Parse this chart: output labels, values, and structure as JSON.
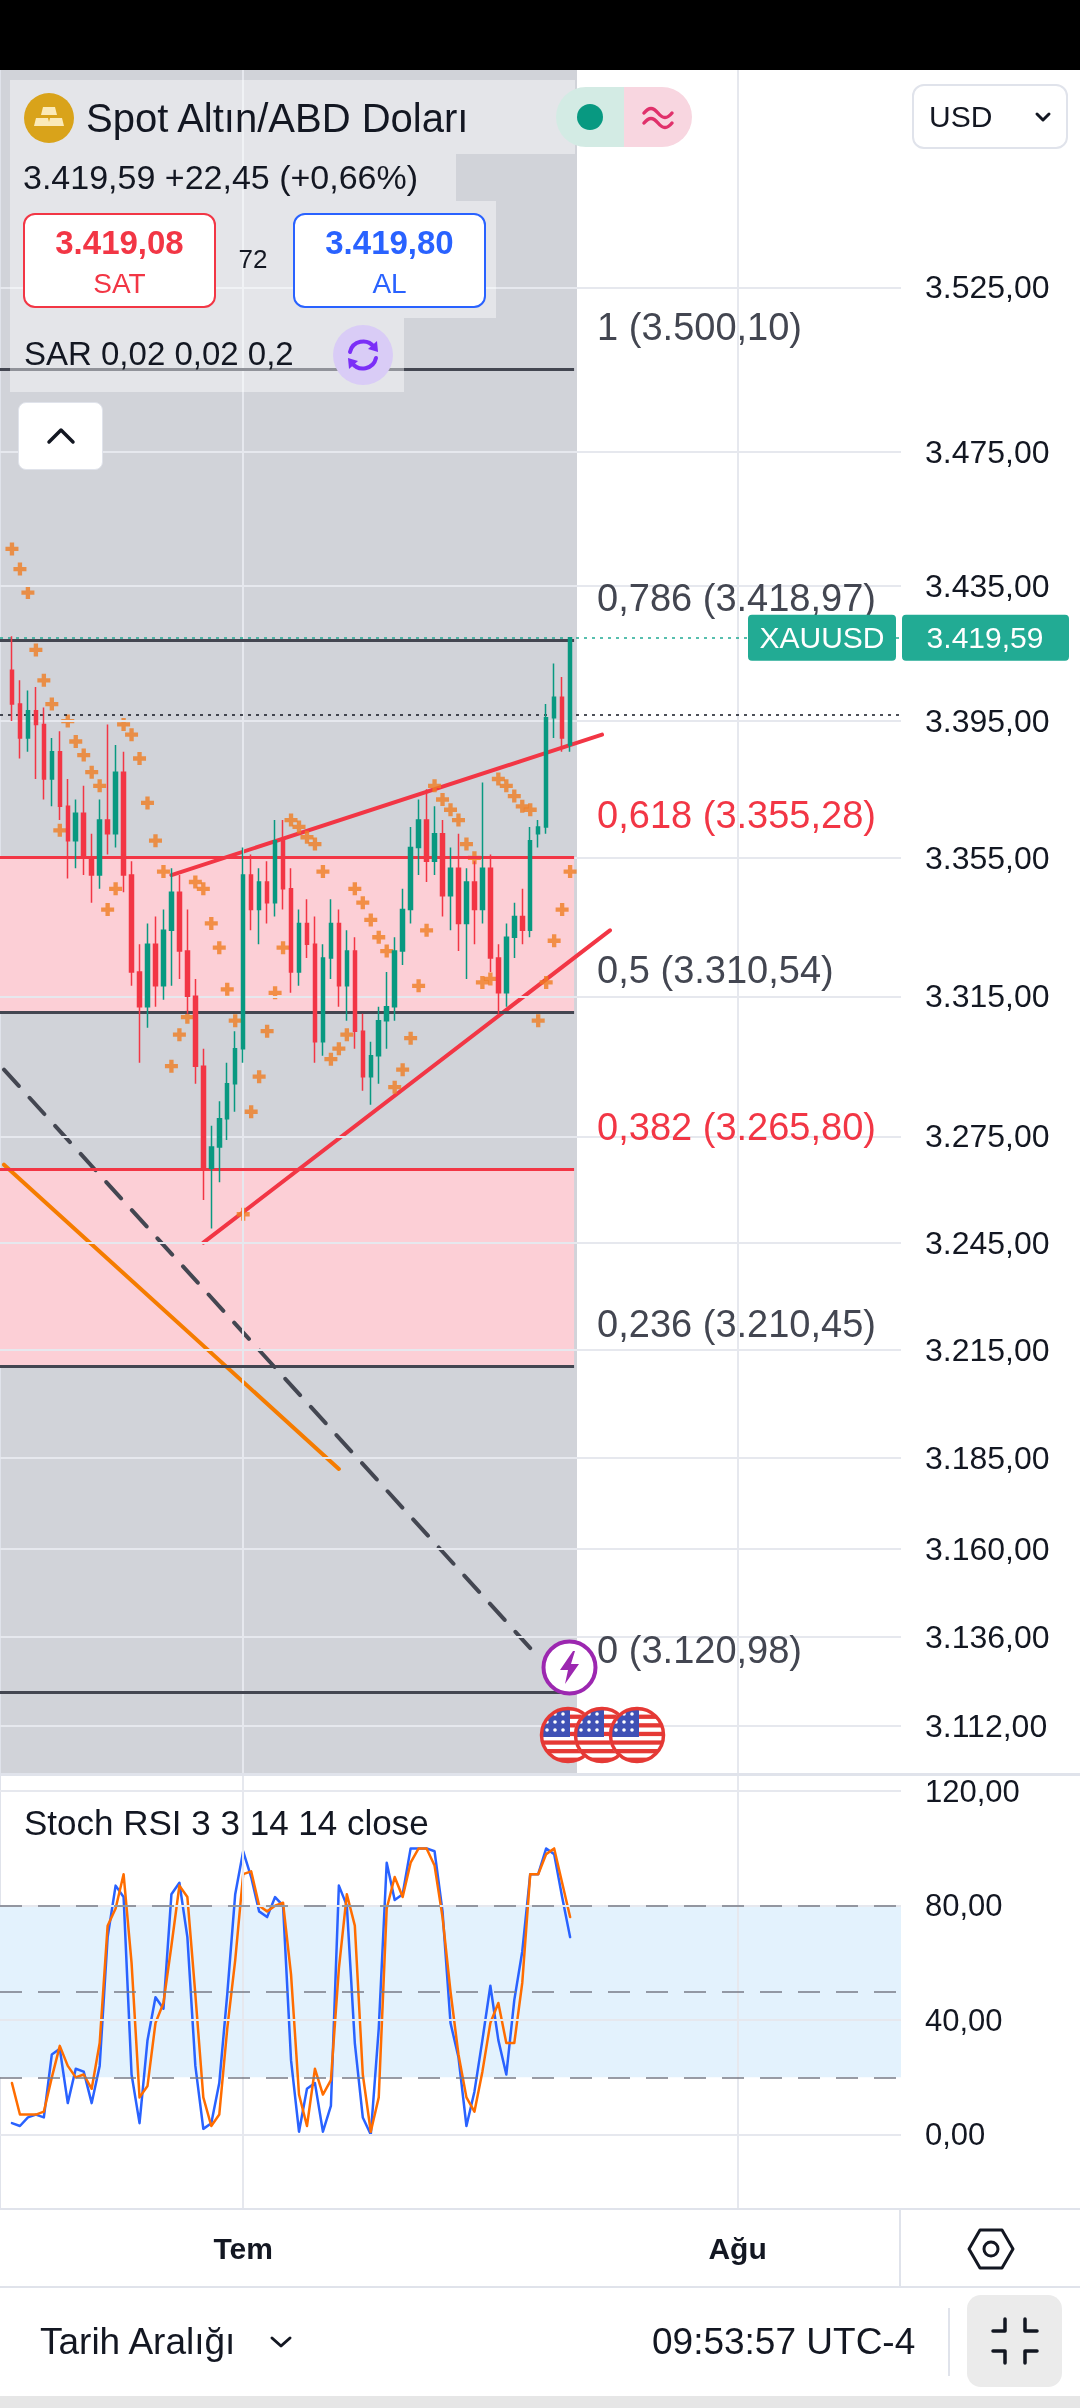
{
  "chart_data": [
    {
      "type": "candlestick",
      "title": "Spot Altın/ABD Doları",
      "subtitle": "3.419,59 +22,45 (+0,66%)",
      "annotations": [
        "3.419,08",
        "SAT",
        "72",
        "3.419,80",
        "AL",
        "SAR 0,02 0,02 0,2",
        "USD",
        "3.419,59"
      ],
      "categories": [
        null,
        null,
        null,
        null,
        null,
        null,
        null,
        null,
        null,
        null,
        null,
        null,
        null,
        null,
        null,
        null,
        null,
        null,
        null,
        null,
        null,
        null,
        null,
        null,
        null,
        null,
        null,
        null,
        null,
        null,
        null,
        null,
        null,
        null,
        null,
        null,
        null,
        null,
        null,
        null,
        null,
        null,
        null,
        null,
        null,
        null,
        null,
        null,
        null,
        null,
        null,
        null,
        null,
        null,
        null,
        null,
        null,
        null,
        null,
        null,
        null,
        null,
        null,
        null,
        null,
        null,
        null,
        null,
        null,
        null,
        null,
        null,
        null,
        null,
        null,
        null,
        null,
        null,
        null,
        null,
        null,
        null,
        null,
        null,
        null,
        null,
        null,
        null,
        null,
        null,
        null,
        null,
        null,
        null,
        null,
        null,
        null,
        null,
        null,
        null,
        null,
        null,
        null,
        null,
        null,
        null,
        null,
        null,
        null,
        null,
        null,
        null,
        null
      ],
      "ohlc": [
        null,
        [
          3410,
          3420,
          3395,
          3400
        ],
        [
          3400,
          3407,
          3384,
          3390
        ],
        [
          3390,
          3404,
          3386,
          3398
        ],
        [
          3398,
          3405,
          3378,
          3394
        ],
        [
          3394,
          3399,
          3372,
          3378
        ],
        [
          3378,
          3390,
          3370,
          3386
        ],
        [
          3386,
          3392,
          3366,
          3370
        ],
        [
          3370,
          3378,
          3349,
          3360
        ],
        [
          3360,
          3372,
          3352,
          3368
        ],
        [
          3368,
          3376,
          3350,
          3355
        ],
        [
          3355,
          3362,
          3342,
          3350
        ],
        [
          3350,
          3372,
          3346,
          3366
        ],
        [
          3366,
          3394,
          3356,
          3362
        ],
        [
          3362,
          3388,
          3358,
          3380
        ],
        [
          3380,
          3386,
          3345,
          3350
        ],
        [
          3350,
          3354,
          3318,
          3322
        ],
        [
          3322,
          3330,
          3296,
          3312
        ],
        [
          3312,
          3336,
          3306,
          3330
        ],
        [
          3330,
          3338,
          3312,
          3318
        ],
        [
          3318,
          3340,
          3314,
          3334
        ],
        [
          3334,
          3352,
          3318,
          3345
        ],
        [
          3345,
          3350,
          3320,
          3328
        ],
        [
          3328,
          3340,
          3310,
          3315
        ],
        [
          3315,
          3320,
          3290,
          3295
        ],
        [
          3295,
          3300,
          3257,
          3266
        ],
        [
          3266,
          3278,
          3249,
          3272
        ],
        [
          3272,
          3285,
          3262,
          3280
        ],
        [
          3280,
          3296,
          3274,
          3290
        ],
        [
          3290,
          3305,
          3282,
          3300
        ],
        [
          3300,
          3358,
          3296,
          3350
        ],
        [
          3350,
          3356,
          3334,
          3340
        ],
        [
          3340,
          3352,
          3330,
          3348
        ],
        [
          3348,
          3354,
          3336,
          3342
        ],
        [
          3342,
          3366,
          3338,
          3360
        ],
        [
          3360,
          3366,
          3340,
          3346
        ],
        [
          3346,
          3352,
          3316,
          3322
        ],
        [
          3322,
          3340,
          3318,
          3336
        ],
        [
          3336,
          3343,
          3326,
          3330
        ],
        [
          3330,
          3338,
          3296,
          3302
        ],
        [
          3302,
          3330,
          3298,
          3326
        ],
        [
          3326,
          3343,
          3320,
          3336
        ],
        [
          3336,
          3340,
          3312,
          3318
        ],
        [
          3318,
          3334,
          3308,
          3328
        ],
        [
          3328,
          3332,
          3300,
          3305
        ],
        [
          3305,
          3310,
          3288,
          3292
        ],
        [
          3292,
          3302,
          3284,
          3298
        ],
        [
          3298,
          3312,
          3290,
          3308
        ],
        [
          3308,
          3322,
          3300,
          3312
        ],
        [
          3312,
          3332,
          3308,
          3328
        ],
        [
          3328,
          3346,
          3324,
          3340
        ],
        [
          3340,
          3364,
          3336,
          3358
        ],
        [
          3358,
          3372,
          3350,
          3366
        ],
        [
          3366,
          3375,
          3348,
          3354
        ],
        [
          3354,
          3370,
          3350,
          3362
        ],
        [
          3362,
          3366,
          3338,
          3344
        ],
        [
          3344,
          3358,
          3334,
          3352
        ],
        [
          3352,
          3362,
          3328,
          3336
        ],
        [
          3336,
          3352,
          3320,
          3348
        ],
        [
          3348,
          3354,
          3330,
          3340
        ],
        [
          3340,
          3377,
          3336,
          3352
        ],
        [
          3352,
          3356,
          3322,
          3326
        ],
        [
          3326,
          3330,
          3310,
          3316
        ],
        [
          3316,
          3336,
          3312,
          3332
        ],
        [
          3332,
          3342,
          3326,
          3338
        ],
        [
          3338,
          3346,
          3330,
          3334
        ],
        [
          3334,
          3364,
          3332,
          3360
        ],
        [
          3362,
          3366,
          3358,
          3364
        ],
        [
          3364,
          3400,
          3362,
          3396
        ],
        [
          3396,
          3412,
          3390,
          3402
        ],
        [
          3402,
          3408,
          3386,
          3390
        ],
        [
          3388,
          3419.59,
          3386,
          3419.59
        ],
        null,
        null,
        null,
        null,
        null,
        null,
        null,
        null,
        null,
        null,
        null,
        null,
        null,
        null,
        null,
        null,
        null,
        null,
        null,
        null,
        null,
        null,
        null,
        null,
        null,
        null,
        null,
        null,
        null,
        null,
        null,
        null,
        null,
        null,
        null,
        null,
        null,
        null,
        null,
        null,
        null
      ],
      "colors": [
        null,
        "#f23645",
        "#f23645",
        "#089981",
        "#f23645",
        "#f23645",
        "#089981",
        "#f23645",
        "#f23645",
        "#089981",
        "#f23645",
        "#f23645",
        "#089981",
        "#f23645",
        "#089981",
        "#f23645",
        "#f23645",
        "#f23645",
        "#089981",
        "#f23645",
        "#089981",
        "#089981",
        "#f23645",
        "#f23645",
        "#f23645",
        "#f23645",
        "#089981",
        "#089981",
        "#089981",
        "#089981",
        "#089981",
        "#f23645",
        "#089981",
        "#f23645",
        "#089981",
        "#f23645",
        "#f23645",
        "#089981",
        "#f23645",
        "#f23645",
        "#089981",
        "#089981",
        "#f23645",
        "#089981",
        "#f23645",
        "#f23645",
        "#089981",
        "#089981",
        "#089981",
        "#089981",
        "#089981",
        "#089981",
        "#089981",
        "#f23645",
        "#089981",
        "#f23645",
        "#089981",
        "#f23645",
        "#089981",
        "#f23645",
        "#089981",
        "#f23645",
        "#f23645",
        "#089981",
        "#089981",
        "#f23645",
        "#089981",
        "#089981",
        "#089981",
        "#089981",
        "#f23645",
        "#089981",
        null,
        null,
        null,
        null,
        null,
        null,
        null,
        null,
        null,
        null,
        null,
        null,
        null,
        null,
        null,
        null,
        null,
        null,
        null,
        null,
        null,
        null,
        null,
        null,
        null,
        null,
        null,
        null,
        null,
        null,
        null,
        null,
        null,
        null,
        null,
        null,
        null,
        null,
        null,
        null,
        null
      ],
      "series": [
        {
          "type": "scatter",
          "marker": "cross",
          "color": "#ef7d22",
          "values": [
            null,
            3446,
            3440,
            3433,
            3416,
            3407,
            3400,
            3363,
            3395,
            3389,
            3385,
            3380,
            3376,
            3340,
            3346,
            3394,
            3391,
            3384,
            3371,
            3360,
            3351,
            3295,
            3304,
            3309,
            3348,
            3346,
            3336,
            3329,
            3317,
            3308,
            3253,
            3282,
            3292,
            3305,
            3316,
            3329,
            3366,
            3364,
            3361,
            3359,
            3351,
            3297,
            3300,
            3304,
            3346,
            3342,
            3337,
            3332,
            3328,
            3289,
            3294,
            3303,
            3318,
            3334,
            3376,
            3372,
            3369,
            3366,
            3359,
            3355,
            3319,
            3320,
            3378,
            3376,
            3373,
            3370,
            3369,
            3308,
            3319,
            3331,
            3340,
            3351,
            null,
            null,
            null,
            null,
            null,
            null,
            null,
            null,
            null,
            null,
            null,
            null,
            null,
            null,
            null,
            null,
            null,
            null,
            null,
            null,
            null,
            null,
            null,
            null,
            null,
            null,
            null,
            null,
            null,
            null,
            null,
            null,
            null,
            null,
            null,
            null,
            null,
            null,
            null,
            null,
            null
          ]
        },
        {
          "type": "line",
          "marker": "none",
          "color": "#f23645",
          "values": [
            null,
            null,
            null,
            null,
            null,
            null,
            null,
            null,
            null,
            null,
            null,
            null,
            null,
            null,
            null,
            null,
            null,
            null,
            null,
            null,
            null,
            3350,
            null,
            null,
            null,
            null,
            null,
            null,
            null,
            null,
            null,
            null,
            null,
            null,
            null,
            null,
            null,
            null,
            null,
            null,
            null,
            null,
            null,
            null,
            null,
            null,
            null,
            null,
            null,
            null,
            null,
            null,
            null,
            null,
            null,
            null,
            null,
            null,
            null,
            null,
            null,
            null,
            null,
            null,
            null,
            null,
            null,
            null,
            null,
            null,
            null,
            null,
            null,
            null,
            null,
            3391,
            null,
            null,
            null,
            null,
            null,
            null,
            null,
            null,
            null,
            null,
            null,
            null,
            null,
            null,
            null,
            null,
            null,
            null,
            null,
            null,
            null,
            null,
            null,
            null,
            null,
            null,
            null,
            null,
            null,
            null,
            null,
            null,
            null,
            null,
            null,
            null,
            null
          ]
        },
        {
          "type": "line",
          "marker": "none",
          "color": "#f23645",
          "values": [
            null,
            null,
            null,
            null,
            null,
            null,
            null,
            null,
            null,
            null,
            null,
            null,
            null,
            null,
            null,
            null,
            null,
            null,
            null,
            null,
            null,
            null,
            null,
            null,
            null,
            3245,
            null,
            null,
            null,
            null,
            null,
            null,
            null,
            null,
            null,
            null,
            null,
            null,
            null,
            null,
            null,
            null,
            null,
            null,
            null,
            null,
            null,
            null,
            null,
            null,
            null,
            null,
            null,
            null,
            null,
            null,
            null,
            null,
            null,
            null,
            null,
            null,
            null,
            null,
            null,
            null,
            null,
            null,
            null,
            null,
            null,
            null,
            null,
            null,
            null,
            null,
            3334,
            null,
            null,
            null,
            null,
            null,
            null,
            null,
            null,
            null,
            null,
            null,
            null,
            null,
            null,
            null,
            null,
            null,
            null,
            null,
            null,
            null,
            null,
            null,
            null,
            null,
            null,
            null,
            null,
            null,
            null,
            null,
            null,
            null,
            null,
            null,
            null
          ]
        },
        {
          "type": "line",
          "marker": "none",
          "color": "#f57c00",
          "values": [
            3267,
            null,
            null,
            null,
            null,
            null,
            null,
            null,
            null,
            null,
            null,
            null,
            null,
            null,
            null,
            null,
            null,
            null,
            null,
            null,
            null,
            null,
            null,
            null,
            null,
            null,
            null,
            null,
            null,
            null,
            null,
            null,
            null,
            null,
            null,
            null,
            null,
            null,
            null,
            null,
            null,
            null,
            3182,
            null,
            null,
            null,
            null,
            null,
            null,
            null,
            null,
            null,
            null,
            null,
            null,
            null,
            null,
            null,
            null,
            null,
            null,
            null,
            null,
            null,
            null,
            null,
            null,
            null,
            null,
            null,
            null,
            null,
            null,
            null,
            null,
            null,
            null,
            null,
            null,
            null,
            null,
            null,
            null,
            null,
            null,
            null,
            null,
            null,
            null,
            null,
            null,
            null,
            null,
            null,
            null,
            null,
            null,
            null,
            null,
            null,
            null,
            null,
            null,
            null,
            null,
            null,
            null,
            null,
            null,
            null,
            null,
            null,
            null
          ]
        },
        {
          "type": "line",
          "marker": "none",
          "color": "#434651",
          "line_style": "dashed",
          "values": [
            3294,
            null,
            null,
            null,
            null,
            null,
            null,
            null,
            null,
            null,
            null,
            null,
            null,
            null,
            null,
            null,
            null,
            null,
            null,
            null,
            null,
            null,
            null,
            null,
            null,
            null,
            null,
            null,
            null,
            null,
            null,
            null,
            null,
            null,
            null,
            null,
            null,
            null,
            null,
            null,
            null,
            null,
            null,
            null,
            null,
            null,
            null,
            null,
            null,
            null,
            null,
            null,
            null,
            null,
            null,
            null,
            null,
            null,
            null,
            null,
            null,
            null,
            null,
            null,
            null,
            null,
            3133,
            null,
            null,
            null,
            null,
            null,
            null,
            null,
            null,
            null,
            null,
            null,
            null,
            null,
            null,
            null,
            null,
            null,
            null,
            null,
            null,
            null,
            null,
            null,
            null,
            null,
            null,
            null,
            null,
            null,
            null,
            null,
            null,
            null,
            null,
            null,
            null,
            null,
            null,
            null,
            null,
            null,
            null,
            null,
            null,
            null,
            null
          ]
        }
      ],
      "ylim": [
        3099,
        3592
      ],
      "yticks": [
        {
          "value": 3525,
          "label": "3.525,00"
        },
        {
          "value": 3475,
          "label": "3.475,00"
        },
        {
          "value": 3435,
          "label": "3.435,00"
        },
        {
          "value": 3395,
          "label": "3.395,00"
        },
        {
          "value": 3355,
          "label": "3.355,00"
        },
        {
          "value": 3315,
          "label": "3.315,00"
        },
        {
          "value": 3275,
          "label": "3.275,00"
        },
        {
          "value": 3245,
          "label": "3.245,00"
        },
        {
          "value": 3215,
          "label": "3.215,00"
        },
        {
          "value": 3185,
          "label": "3.185,00"
        },
        {
          "value": 3160,
          "label": "3.160,00"
        },
        {
          "value": 3136,
          "label": "3.136,00"
        },
        {
          "value": 3112,
          "label": "3.112,00"
        }
      ],
      "log": true,
      "grid": true,
      "tick_labels": "y",
      "bands": [
        {
          "axis": "y",
          "from": 3310.54,
          "to": 3355.28,
          "color": "#fccfd6"
        },
        {
          "axis": "y",
          "from": 3210.45,
          "to": 3265.8,
          "color": "#fccfd6"
        }
      ],
      "ref_lines": [
        {
          "axis": "y",
          "value": 3500.1,
          "label": "1 (3.500,10)",
          "color": "#434651"
        },
        {
          "axis": "y",
          "value": 3418.97,
          "label": "0,786 (3.418,97)",
          "color": "#434651"
        },
        {
          "axis": "y",
          "value": 3355.28,
          "label": "0,618 (3.355,28)",
          "color": "#f23645"
        },
        {
          "axis": "y",
          "value": 3310.54,
          "label": "0,5 (3.310,54)",
          "color": "#434651"
        },
        {
          "axis": "y",
          "value": 3265.8,
          "label": "0,382 (3.265,80)",
          "color": "#f23645"
        },
        {
          "axis": "y",
          "value": 3210.45,
          "label": "0,236 (3.210,45)",
          "color": "#434651"
        },
        {
          "axis": "y",
          "value": 3120.98,
          "label": "0 (3.120,98)",
          "color": "#434651"
        },
        {
          "axis": "y",
          "value": 3419.59,
          "label": "XAUUSD",
          "color": "#22ab94",
          "line_style": "dotted"
        },
        {
          "axis": "y",
          "value": 3397,
          "color": "#131722",
          "line_style": "dotted"
        }
      ]
    },
    {
      "type": "line",
      "title": "Stoch RSI 3 3 14 14 close",
      "annotations": [
        "Tarih Aralığı",
        "09:53:57 UTC-4"
      ],
      "categories": [
        null,
        null,
        null,
        null,
        null,
        null,
        null,
        null,
        null,
        null,
        null,
        null,
        null,
        null,
        null,
        null,
        null,
        null,
        null,
        null,
        null,
        null,
        null,
        null,
        null,
        null,
        null,
        null,
        null,
        null,
        "Tem",
        null,
        null,
        null,
        null,
        null,
        null,
        null,
        null,
        null,
        null,
        null,
        null,
        null,
        null,
        null,
        null,
        null,
        null,
        null,
        null,
        null,
        null,
        null,
        null,
        null,
        null,
        null,
        null,
        null,
        null,
        null,
        null,
        null,
        null,
        null,
        null,
        null,
        null,
        null,
        null,
        null,
        null,
        null,
        null,
        null,
        null,
        null,
        null,
        null,
        null,
        null,
        null,
        null,
        null,
        null,
        null,
        null,
        null,
        null,
        null,
        null,
        "Ağu",
        null,
        null,
        null,
        null,
        null,
        null,
        null,
        null,
        null,
        null,
        null,
        null,
        null,
        null,
        null,
        null,
        null,
        null,
        null,
        null
      ],
      "series": [
        {
          "color": "#2962ff",
          "values": [
            null,
            4,
            3,
            6,
            7,
            6,
            28,
            30,
            11,
            23,
            22,
            11,
            24,
            69,
            87,
            83,
            21,
            4,
            33,
            48,
            44,
            84,
            88,
            69,
            24,
            2,
            4,
            18,
            49,
            84,
            99,
            90,
            78,
            76,
            83,
            80,
            26,
            1,
            16,
            18,
            1,
            10,
            87,
            80,
            32,
            6,
            0,
            37,
            95,
            82,
            84,
            100,
            100,
            100,
            99,
            78,
            39,
            27,
            3,
            15,
            33,
            52,
            33,
            21,
            47,
            64,
            91,
            91,
            100,
            98,
            83,
            69,
            null,
            null,
            null,
            null,
            null,
            null,
            null,
            null,
            null,
            null,
            null,
            null,
            null,
            null,
            null,
            null,
            null,
            null,
            null,
            null,
            null,
            null,
            null,
            null,
            null,
            null,
            null,
            null,
            null,
            null,
            null,
            null,
            null,
            null,
            null,
            null,
            null,
            null,
            null,
            null,
            null
          ]
        },
        {
          "color": "#ff6d00",
          "values": [
            null,
            18,
            7,
            7,
            7,
            8,
            20,
            31,
            24,
            20,
            21,
            16,
            32,
            73,
            79,
            91,
            60,
            13,
            17,
            39,
            46,
            66,
            87,
            83,
            49,
            13,
            3,
            7,
            37,
            61,
            91,
            92,
            80,
            78,
            80,
            81,
            56,
            14,
            3,
            23,
            14,
            19,
            58,
            84,
            73,
            21,
            1,
            13,
            79,
            90,
            83,
            95,
            100,
            100,
            94,
            76,
            50,
            28,
            13,
            8,
            22,
            39,
            46,
            32,
            32,
            53,
            91,
            91,
            98,
            100,
            88,
            76,
            null,
            null,
            null,
            null,
            null,
            null,
            null,
            null,
            null,
            null,
            null,
            null,
            null,
            null,
            null,
            null,
            null,
            null,
            null,
            null,
            null,
            null,
            null,
            null,
            null,
            null,
            null,
            null,
            null,
            null,
            null,
            null,
            null,
            null,
            null,
            null,
            null,
            null,
            null,
            null,
            null
          ]
        }
      ],
      "ylim": [
        -26,
        126
      ],
      "yticks": [
        {
          "value": 120,
          "label": "120,00"
        },
        {
          "value": 80,
          "label": "80,00"
        },
        {
          "value": 40,
          "label": "40,00"
        },
        {
          "value": 0,
          "label": "0,00"
        }
      ],
      "grid": true,
      "marker": "none",
      "bands": [
        {
          "axis": "y",
          "from": 20,
          "to": 80,
          "color": "#e3f2fd"
        }
      ],
      "ref_lines": [
        {
          "axis": "y",
          "value": 80,
          "color": "#787b86",
          "line_style": "dashed"
        },
        {
          "axis": "y",
          "value": 50,
          "color": "#787b86",
          "line_style": "dashed"
        },
        {
          "axis": "y",
          "value": 20,
          "color": "#787b86",
          "line_style": "dashed"
        }
      ]
    }
  ]
}
